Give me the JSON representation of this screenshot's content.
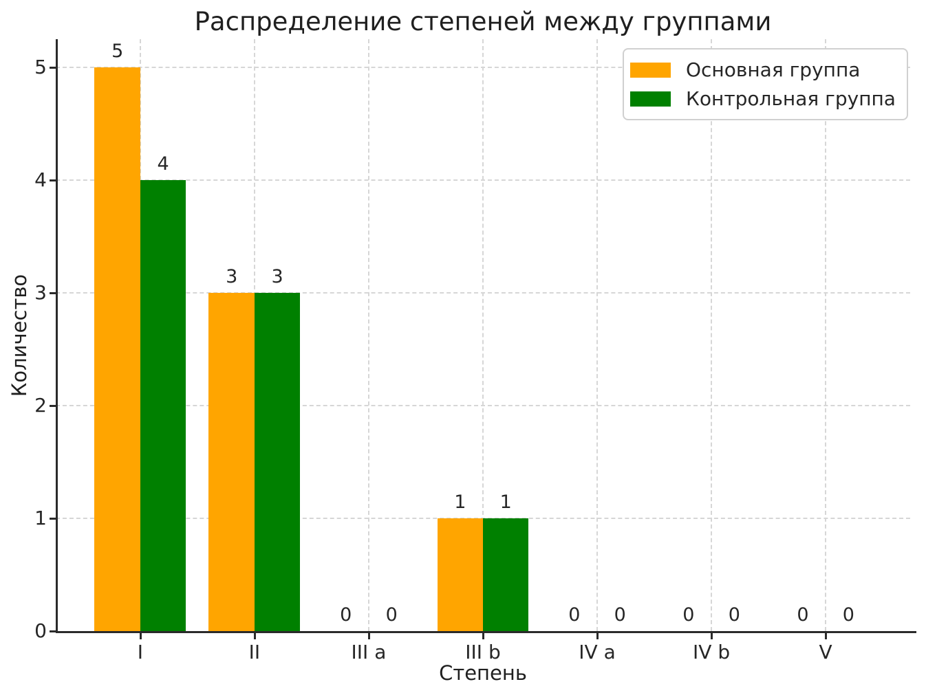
{
  "chart_data": {
    "type": "bar",
    "title": "Распределение степеней между группами",
    "xlabel": "Степень",
    "ylabel": "Количество",
    "categories": [
      "I",
      "II",
      "III a",
      "III b",
      "IV a",
      "IV b",
      "V"
    ],
    "series": [
      {
        "name": "Основная группа",
        "color": "#FFA500",
        "values": [
          5,
          3,
          0,
          1,
          0,
          0,
          0
        ]
      },
      {
        "name": "Контрольная группа",
        "color": "#008000",
        "values": [
          4,
          3,
          0,
          1,
          0,
          0,
          0
        ]
      }
    ],
    "yticks": [
      0,
      1,
      2,
      3,
      4,
      5
    ],
    "ylim": [
      0,
      5.25
    ],
    "xlim": [
      -0.74,
      6.74
    ],
    "bar_width": 0.4,
    "grid": true,
    "grid_style": "dashed",
    "legend_position": "upper right",
    "value_labels_shown": true
  }
}
